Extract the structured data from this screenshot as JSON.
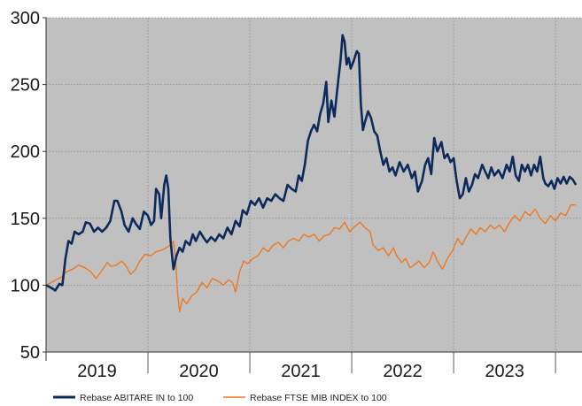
{
  "chart_data": {
    "type": "line",
    "title": "",
    "xlabel": "",
    "ylabel": "",
    "ylim": [
      50,
      300
    ],
    "yticks": [
      50,
      100,
      150,
      200,
      250,
      300
    ],
    "xlim": [
      2018.5,
      2023.76
    ],
    "x_tick_labels": [
      "2019",
      "2020",
      "2021",
      "2022",
      "2023"
    ],
    "x_tick_positions": [
      2019.0,
      2020.0,
      2021.0,
      2022.0,
      2023.0
    ],
    "x_gridlines": [
      2019.5,
      2020.5,
      2021.5,
      2022.5,
      2023.5
    ],
    "grid": true,
    "legend_position": "bottom-left",
    "colors": {
      "plot_bg": "#c0c0c0",
      "grid": "#8c8c8c",
      "axis": "#333333"
    },
    "series": [
      {
        "name": "Rebase ABITARE IN to 100",
        "color": "#0d2a5c",
        "points": [
          [
            2018.5,
            100
          ],
          [
            2018.55,
            98
          ],
          [
            2018.59,
            96
          ],
          [
            2018.63,
            101
          ],
          [
            2018.66,
            100
          ],
          [
            2018.69,
            120
          ],
          [
            2018.72,
            133
          ],
          [
            2018.75,
            131
          ],
          [
            2018.78,
            140
          ],
          [
            2018.82,
            138
          ],
          [
            2018.86,
            140
          ],
          [
            2018.89,
            147
          ],
          [
            2018.93,
            146
          ],
          [
            2018.97,
            140
          ],
          [
            2019.01,
            143
          ],
          [
            2019.05,
            140
          ],
          [
            2019.09,
            143
          ],
          [
            2019.13,
            148
          ],
          [
            2019.17,
            163
          ],
          [
            2019.2,
            163
          ],
          [
            2019.24,
            155
          ],
          [
            2019.27,
            145
          ],
          [
            2019.31,
            140
          ],
          [
            2019.35,
            150
          ],
          [
            2019.38,
            146
          ],
          [
            2019.42,
            142
          ],
          [
            2019.46,
            155
          ],
          [
            2019.5,
            152
          ],
          [
            2019.53,
            145
          ],
          [
            2019.56,
            148
          ],
          [
            2019.58,
            172
          ],
          [
            2019.61,
            168
          ],
          [
            2019.63,
            150
          ],
          [
            2019.66,
            175
          ],
          [
            2019.68,
            182
          ],
          [
            2019.7,
            172
          ],
          [
            2019.72,
            135
          ],
          [
            2019.75,
            112
          ],
          [
            2019.78,
            122
          ],
          [
            2019.81,
            128
          ],
          [
            2019.84,
            125
          ],
          [
            2019.87,
            133
          ],
          [
            2019.91,
            130
          ],
          [
            2019.94,
            138
          ],
          [
            2019.97,
            133
          ],
          [
            2020.01,
            140
          ],
          [
            2020.05,
            135
          ],
          [
            2020.08,
            132
          ],
          [
            2020.12,
            136
          ],
          [
            2020.16,
            133
          ],
          [
            2020.2,
            138
          ],
          [
            2020.24,
            135
          ],
          [
            2020.28,
            143
          ],
          [
            2020.32,
            138
          ],
          [
            2020.36,
            148
          ],
          [
            2020.4,
            144
          ],
          [
            2020.43,
            156
          ],
          [
            2020.47,
            153
          ],
          [
            2020.51,
            163
          ],
          [
            2020.55,
            160
          ],
          [
            2020.59,
            165
          ],
          [
            2020.63,
            158
          ],
          [
            2020.67,
            165
          ],
          [
            2020.71,
            163
          ],
          [
            2020.75,
            168
          ],
          [
            2020.79,
            165
          ],
          [
            2020.83,
            163
          ],
          [
            2020.87,
            175
          ],
          [
            2020.91,
            172
          ],
          [
            2020.95,
            170
          ],
          [
            2020.98,
            182
          ],
          [
            2021.01,
            178
          ],
          [
            2021.04,
            190
          ],
          [
            2021.07,
            208
          ],
          [
            2021.1,
            215
          ],
          [
            2021.13,
            220
          ],
          [
            2021.16,
            215
          ],
          [
            2021.19,
            228
          ],
          [
            2021.22,
            236
          ],
          [
            2021.25,
            252
          ],
          [
            2021.27,
            222
          ],
          [
            2021.3,
            238
          ],
          [
            2021.33,
            226
          ],
          [
            2021.36,
            248
          ],
          [
            2021.39,
            268
          ],
          [
            2021.41,
            287
          ],
          [
            2021.43,
            282
          ],
          [
            2021.45,
            265
          ],
          [
            2021.47,
            270
          ],
          [
            2021.49,
            262
          ],
          [
            2021.52,
            268
          ],
          [
            2021.55,
            275
          ],
          [
            2021.57,
            273
          ],
          [
            2021.59,
            235
          ],
          [
            2021.61,
            216
          ],
          [
            2021.63,
            222
          ],
          [
            2021.66,
            230
          ],
          [
            2021.69,
            225
          ],
          [
            2021.72,
            215
          ],
          [
            2021.75,
            212
          ],
          [
            2021.78,
            200
          ],
          [
            2021.81,
            190
          ],
          [
            2021.84,
            195
          ],
          [
            2021.87,
            185
          ],
          [
            2021.9,
            188
          ],
          [
            2021.93,
            182
          ],
          [
            2021.97,
            192
          ],
          [
            2022.01,
            185
          ],
          [
            2022.05,
            190
          ],
          [
            2022.09,
            180
          ],
          [
            2022.12,
            185
          ],
          [
            2022.15,
            170
          ],
          [
            2022.19,
            178
          ],
          [
            2022.22,
            190
          ],
          [
            2022.25,
            195
          ],
          [
            2022.28,
            183
          ],
          [
            2022.31,
            210
          ],
          [
            2022.34,
            200
          ],
          [
            2022.38,
            207
          ],
          [
            2022.41,
            195
          ],
          [
            2022.44,
            198
          ],
          [
            2022.47,
            192
          ],
          [
            2022.5,
            195
          ],
          [
            2022.53,
            178
          ],
          [
            2022.56,
            165
          ],
          [
            2022.59,
            168
          ],
          [
            2022.62,
            180
          ],
          [
            2022.65,
            170
          ],
          [
            2022.68,
            175
          ],
          [
            2022.71,
            183
          ],
          [
            2022.74,
            180
          ],
          [
            2022.78,
            190
          ],
          [
            2022.81,
            185
          ],
          [
            2022.84,
            180
          ],
          [
            2022.87,
            188
          ],
          [
            2022.9,
            182
          ],
          [
            2022.94,
            186
          ],
          [
            2022.98,
            180
          ],
          [
            2023.02,
            190
          ],
          [
            2023.05,
            185
          ],
          [
            2023.08,
            196
          ],
          [
            2023.11,
            182
          ],
          [
            2023.14,
            178
          ],
          [
            2023.17,
            190
          ],
          [
            2023.2,
            185
          ],
          [
            2023.23,
            190
          ],
          [
            2023.26,
            182
          ],
          [
            2023.29,
            190
          ],
          [
            2023.32,
            185
          ],
          [
            2023.35,
            196
          ],
          [
            2023.38,
            180
          ],
          [
            2023.4,
            176
          ],
          [
            2023.43,
            174
          ],
          [
            2023.46,
            178
          ],
          [
            2023.49,
            172
          ],
          [
            2023.52,
            180
          ],
          [
            2023.55,
            176
          ],
          [
            2023.58,
            181
          ],
          [
            2023.61,
            176
          ],
          [
            2023.64,
            181
          ],
          [
            2023.67,
            179
          ],
          [
            2023.7,
            175
          ]
        ]
      },
      {
        "name": "Rebase FTSE MIB INDEX to 100",
        "color": "#f07820",
        "points": [
          [
            2018.5,
            100
          ],
          [
            2018.55,
            102
          ],
          [
            2018.6,
            104
          ],
          [
            2018.65,
            106
          ],
          [
            2018.7,
            110
          ],
          [
            2018.76,
            112
          ],
          [
            2018.82,
            115
          ],
          [
            2018.88,
            113
          ],
          [
            2018.94,
            110
          ],
          [
            2018.99,
            105
          ],
          [
            2019.04,
            110
          ],
          [
            2019.1,
            117
          ],
          [
            2019.14,
            114
          ],
          [
            2019.19,
            115
          ],
          [
            2019.24,
            118
          ],
          [
            2019.28,
            115
          ],
          [
            2019.33,
            108
          ],
          [
            2019.38,
            112
          ],
          [
            2019.42,
            118
          ],
          [
            2019.47,
            123
          ],
          [
            2019.53,
            122
          ],
          [
            2019.58,
            125
          ],
          [
            2019.63,
            126
          ],
          [
            2019.68,
            128
          ],
          [
            2019.72,
            130
          ],
          [
            2019.75,
            133
          ],
          [
            2019.77,
            120
          ],
          [
            2019.79,
            95
          ],
          [
            2019.81,
            80
          ],
          [
            2019.84,
            90
          ],
          [
            2019.88,
            86
          ],
          [
            2019.93,
            92
          ],
          [
            2019.98,
            95
          ],
          [
            2020.03,
            102
          ],
          [
            2020.08,
            98
          ],
          [
            2020.13,
            105
          ],
          [
            2020.19,
            103
          ],
          [
            2020.24,
            100
          ],
          [
            2020.29,
            104
          ],
          [
            2020.33,
            102
          ],
          [
            2020.36,
            95
          ],
          [
            2020.4,
            110
          ],
          [
            2020.44,
            118
          ],
          [
            2020.48,
            116
          ],
          [
            2020.53,
            120
          ],
          [
            2020.58,
            122
          ],
          [
            2020.63,
            128
          ],
          [
            2020.68,
            125
          ],
          [
            2020.73,
            130
          ],
          [
            2020.78,
            132
          ],
          [
            2020.83,
            128
          ],
          [
            2020.88,
            133
          ],
          [
            2020.93,
            135
          ],
          [
            2020.98,
            133
          ],
          [
            2021.03,
            138
          ],
          [
            2021.08,
            136
          ],
          [
            2021.13,
            138
          ],
          [
            2021.18,
            133
          ],
          [
            2021.23,
            137
          ],
          [
            2021.28,
            138
          ],
          [
            2021.33,
            143
          ],
          [
            2021.38,
            142
          ],
          [
            2021.43,
            147
          ],
          [
            2021.48,
            140
          ],
          [
            2021.53,
            144
          ],
          [
            2021.58,
            147
          ],
          [
            2021.63,
            143
          ],
          [
            2021.68,
            140
          ],
          [
            2021.71,
            130
          ],
          [
            2021.76,
            126
          ],
          [
            2021.81,
            128
          ],
          [
            2021.86,
            122
          ],
          [
            2021.91,
            128
          ],
          [
            2021.94,
            122
          ],
          [
            2021.99,
            117
          ],
          [
            2022.03,
            120
          ],
          [
            2022.07,
            113
          ],
          [
            2022.11,
            115
          ],
          [
            2022.16,
            118
          ],
          [
            2022.21,
            113
          ],
          [
            2022.26,
            117
          ],
          [
            2022.3,
            125
          ],
          [
            2022.34,
            118
          ],
          [
            2022.39,
            112
          ],
          [
            2022.44,
            120
          ],
          [
            2022.49,
            126
          ],
          [
            2022.54,
            135
          ],
          [
            2022.58,
            130
          ],
          [
            2022.63,
            137
          ],
          [
            2022.67,
            142
          ],
          [
            2022.72,
            138
          ],
          [
            2022.76,
            143
          ],
          [
            2022.81,
            140
          ],
          [
            2022.86,
            145
          ],
          [
            2022.9,
            142
          ],
          [
            2022.95,
            145
          ],
          [
            2023.0,
            140
          ],
          [
            2023.05,
            147
          ],
          [
            2023.1,
            152
          ],
          [
            2023.15,
            148
          ],
          [
            2023.2,
            155
          ],
          [
            2023.25,
            152
          ],
          [
            2023.3,
            157
          ],
          [
            2023.35,
            150
          ],
          [
            2023.4,
            146
          ],
          [
            2023.45,
            152
          ],
          [
            2023.5,
            148
          ],
          [
            2023.55,
            154
          ],
          [
            2023.6,
            152
          ],
          [
            2023.65,
            160
          ],
          [
            2023.7,
            160
          ]
        ]
      }
    ]
  }
}
